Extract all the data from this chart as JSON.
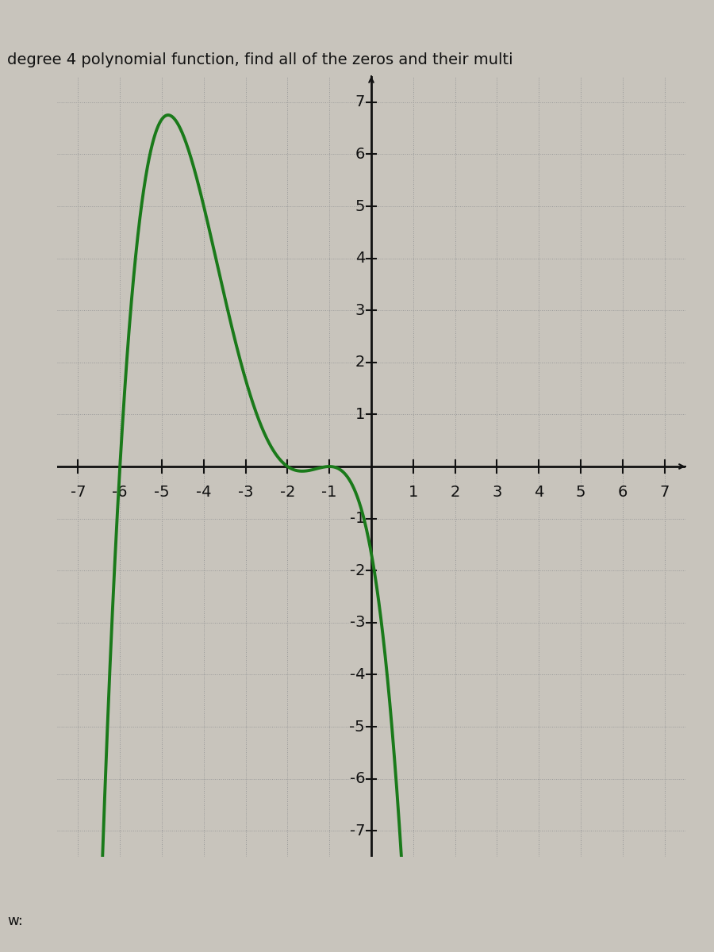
{
  "title": "degree 4 polynomial function, find all of the zeros and their multi",
  "curve_color": "#1a7a1a",
  "curve_linewidth": 2.8,
  "background_color": "#c8c4bc",
  "grid_color": "#999999",
  "axis_color": "#111111",
  "xlim": [
    -7.5,
    7.5
  ],
  "ylim": [
    -7.5,
    7.5
  ],
  "xticks": [
    -7,
    -6,
    -5,
    -4,
    -3,
    -2,
    -1,
    1,
    2,
    3,
    4,
    5,
    6,
    7
  ],
  "yticks": [
    -7,
    -6,
    -5,
    -4,
    -3,
    -2,
    -1,
    1,
    2,
    3,
    4,
    5,
    6,
    7
  ],
  "leading_coeff": -0.139,
  "figsize": [
    9.0,
    12.0
  ],
  "dpi": 100,
  "title_fontsize": 14,
  "tick_fontsize": 14,
  "label_color": "#111111",
  "footer_text": "w:",
  "top_bar_color": "#1a1a2e"
}
